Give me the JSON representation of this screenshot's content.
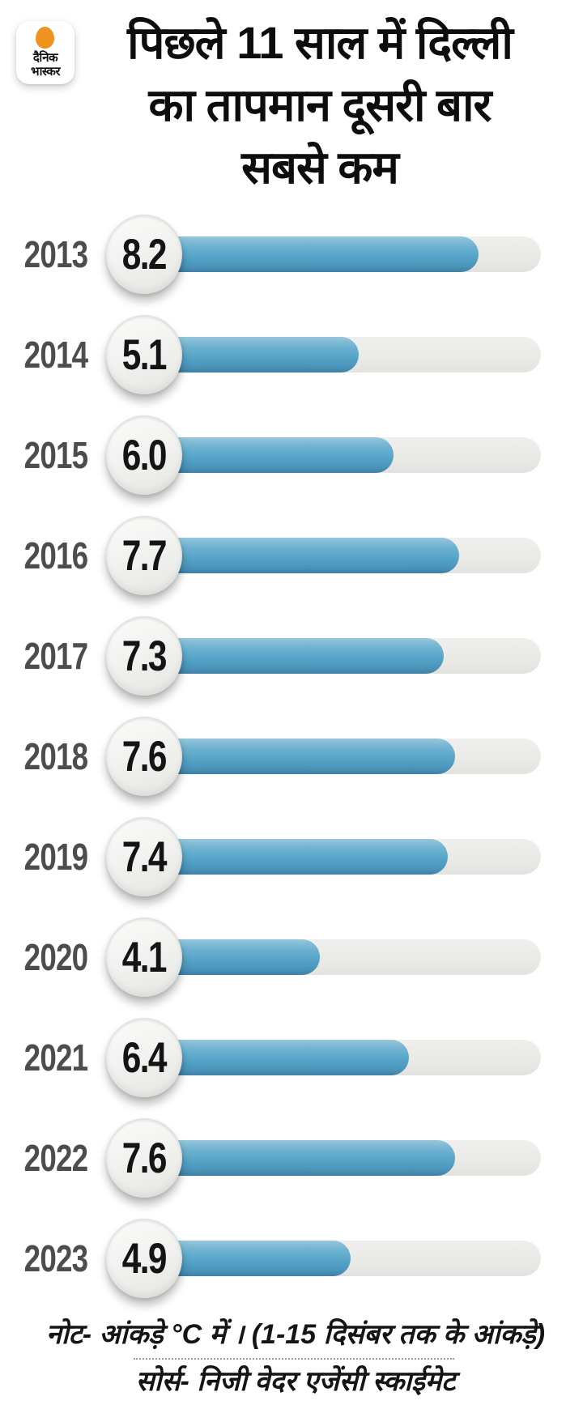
{
  "brand": {
    "logo_line1": "दैनिक",
    "logo_line2": "भास्कर"
  },
  "header": {
    "title_lines": [
      "पिछले 11 साल में दिल्ली",
      "का तापमान दूसरी बार",
      "सबसे कम"
    ]
  },
  "chart_data": {
    "type": "bar",
    "orientation": "horizontal",
    "title": "पिछले 11 साल में दिल्ली का तापमान दूसरी बार सबसे कम",
    "categories": [
      "2013",
      "2014",
      "2015",
      "2016",
      "2017",
      "2018",
      "2019",
      "2020",
      "2021",
      "2022",
      "2023"
    ],
    "values": [
      8.2,
      5.1,
      6.0,
      7.7,
      7.3,
      7.6,
      7.4,
      4.1,
      6.4,
      7.6,
      4.9
    ],
    "unit": "°C",
    "xlim": [
      0,
      9.8
    ],
    "value_label_format": "one-decimal",
    "grid": false,
    "legend": "none"
  },
  "footer": {
    "note": "नोट- आंकड़े °C में  ।  (1-15 दिसंबर तक के आंकड़े)",
    "source": "सोर्स- निजी वेदर एजेंसी स्काईमेट"
  },
  "colors": {
    "bar_fill": "#57a5c9",
    "bar_track": "#e9e9e6",
    "logo_sun": "#f0931f",
    "year_text": "#4d4d4d",
    "value_text": "#141414",
    "title_text": "#0d0d0d"
  }
}
